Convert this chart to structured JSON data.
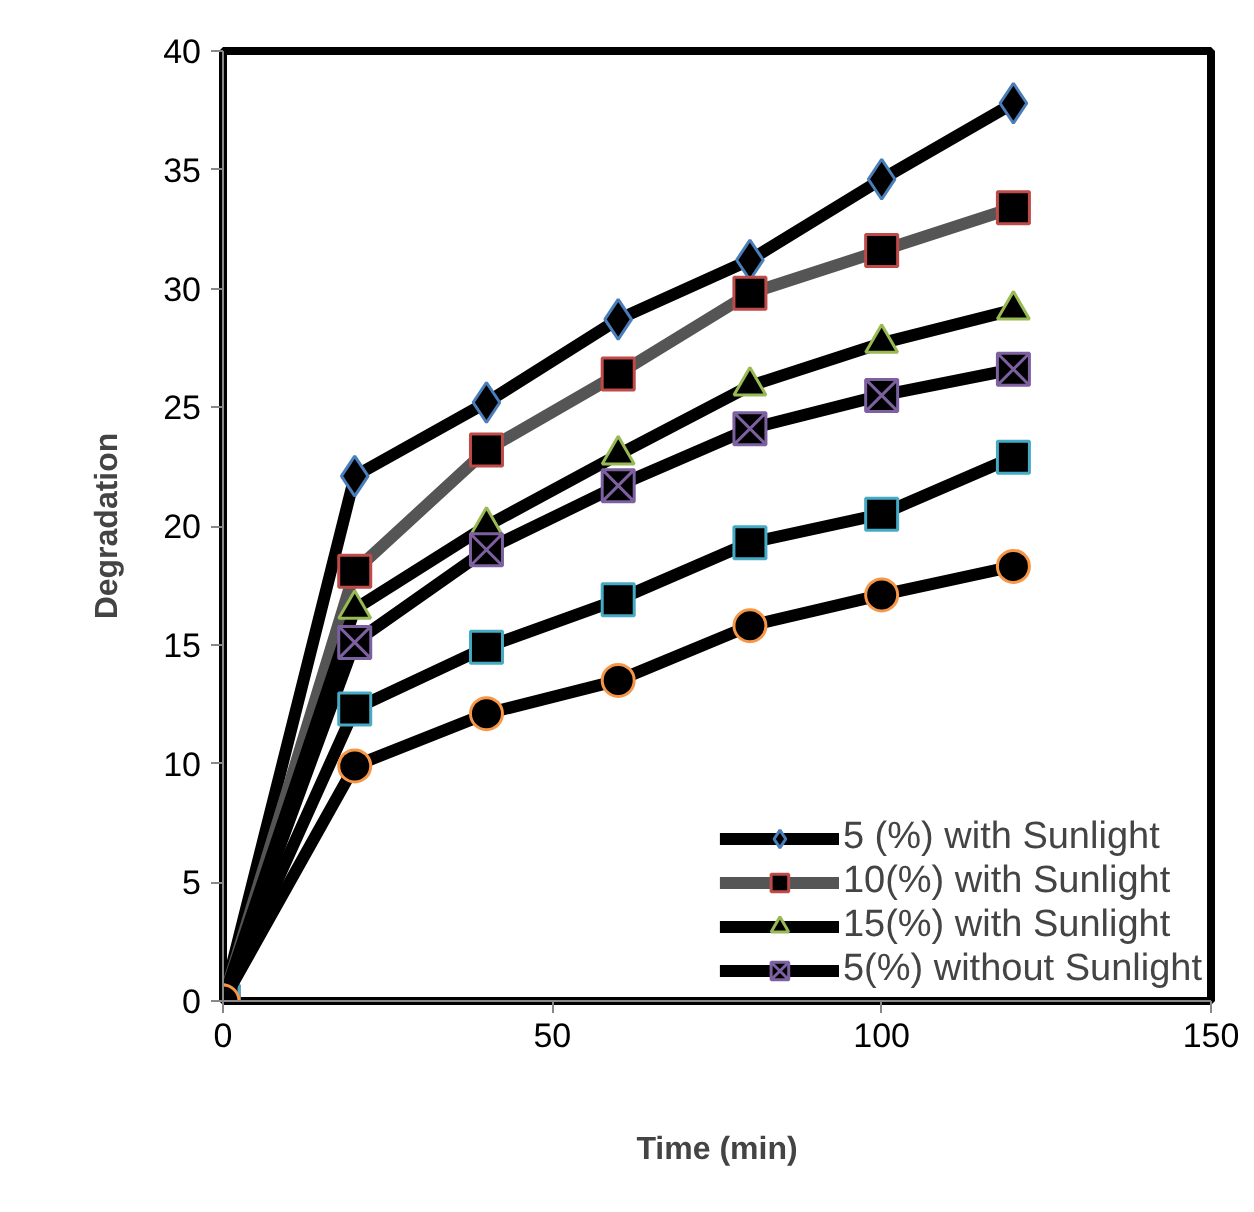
{
  "chart_data": {
    "type": "line",
    "xlabel": "Time (min)",
    "ylabel": "Degradation",
    "x": [
      0,
      20,
      40,
      60,
      80,
      100,
      120
    ],
    "xlim": [
      0,
      150
    ],
    "xticks": [
      0,
      50,
      100,
      150
    ],
    "ylim": [
      0,
      40
    ],
    "yticks": [
      0,
      5,
      10,
      15,
      20,
      25,
      30,
      35,
      40
    ],
    "grid": false,
    "legend": "bottom right",
    "line_style": "solid",
    "series": [
      {
        "name": "5 (%) with Sunlight",
        "color": "#000000",
        "colors": [
          "#4a7ebb",
          "#4a7ebb",
          "#4a7ebb",
          "#4a7ebb",
          "#4a7ebb",
          "#4a7ebb",
          "#4a7ebb"
        ],
        "marker": "diamond",
        "values": [
          0,
          22.1,
          25.2,
          28.7,
          31.2,
          34.6,
          37.8
        ]
      },
      {
        "name": "10(%) with Sunlight",
        "color": "#555555",
        "colors": [
          "#be4b48",
          "#be4b48",
          "#be4b48",
          "#be4b48",
          "#be4b48",
          "#be4b48",
          "#be4b48"
        ],
        "marker": "square",
        "values": [
          0,
          18.1,
          23.2,
          26.4,
          29.8,
          31.6,
          33.4
        ]
      },
      {
        "name": "15(%) with Sunlight",
        "color": "#000000",
        "colors": [
          "#98b954",
          "#98b954",
          "#98b954",
          "#98b954",
          "#98b954",
          "#98b954",
          "#98b954"
        ],
        "marker": "triangle",
        "values": [
          0,
          16.5,
          20.0,
          23.0,
          25.9,
          27.7,
          29.1
        ]
      },
      {
        "name": "5(%) without Sunlight",
        "color": "#000000",
        "colors": [
          "#7d60a0",
          "#7d60a0",
          "#7d60a0",
          "#7d60a0",
          "#7d60a0",
          "#7d60a0",
          "#7d60a0"
        ],
        "marker": "cross",
        "values": [
          0,
          15.1,
          19.0,
          21.7,
          24.1,
          25.5,
          26.6
        ]
      },
      {
        "color": "#000000",
        "colors": [
          "#46aac5",
          "#46aac5",
          "#46aac5",
          "#46aac5",
          "#46aac5",
          "#46aac5",
          "#46aac5"
        ],
        "marker": "square",
        "values": [
          0,
          12.3,
          14.9,
          16.9,
          19.3,
          20.5,
          22.9
        ]
      },
      {
        "color": "#000000",
        "colors": [
          "#f79646",
          "#f79646",
          "#f79646",
          "#f79646",
          "#f79646",
          "#f79646",
          "#f79646"
        ],
        "marker": "circle",
        "values": [
          0,
          9.9,
          12.1,
          13.5,
          15.8,
          17.1,
          18.3
        ]
      }
    ]
  }
}
